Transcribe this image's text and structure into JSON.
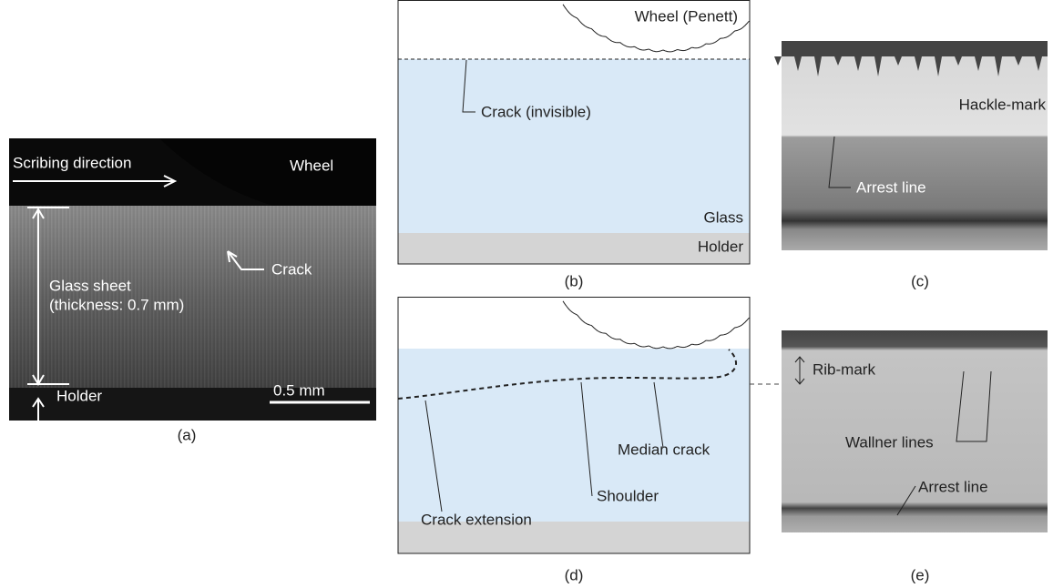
{
  "panels": {
    "a": {
      "caption": "(a)",
      "labels": [
        "Scribing direction",
        "Wheel",
        "Crack",
        "Glass sheet",
        "(thickness: 0.7 mm)",
        "Holder",
        "0.5 mm"
      ]
    },
    "b": {
      "caption": "(b)",
      "labels": [
        "Wheel (Penett)",
        "Crack (invisible)",
        "Glass",
        "Holder"
      ]
    },
    "c": {
      "caption": "(c)",
      "labels": [
        "Hackle-mark",
        "Arrest line"
      ]
    },
    "d": {
      "caption": "(d)",
      "labels": [
        "Crack extension",
        "Shoulder",
        "Median crack"
      ]
    },
    "e": {
      "caption": "(e)",
      "labels": [
        "Rib-mark",
        "Wallner lines",
        "Arrest line"
      ]
    }
  }
}
